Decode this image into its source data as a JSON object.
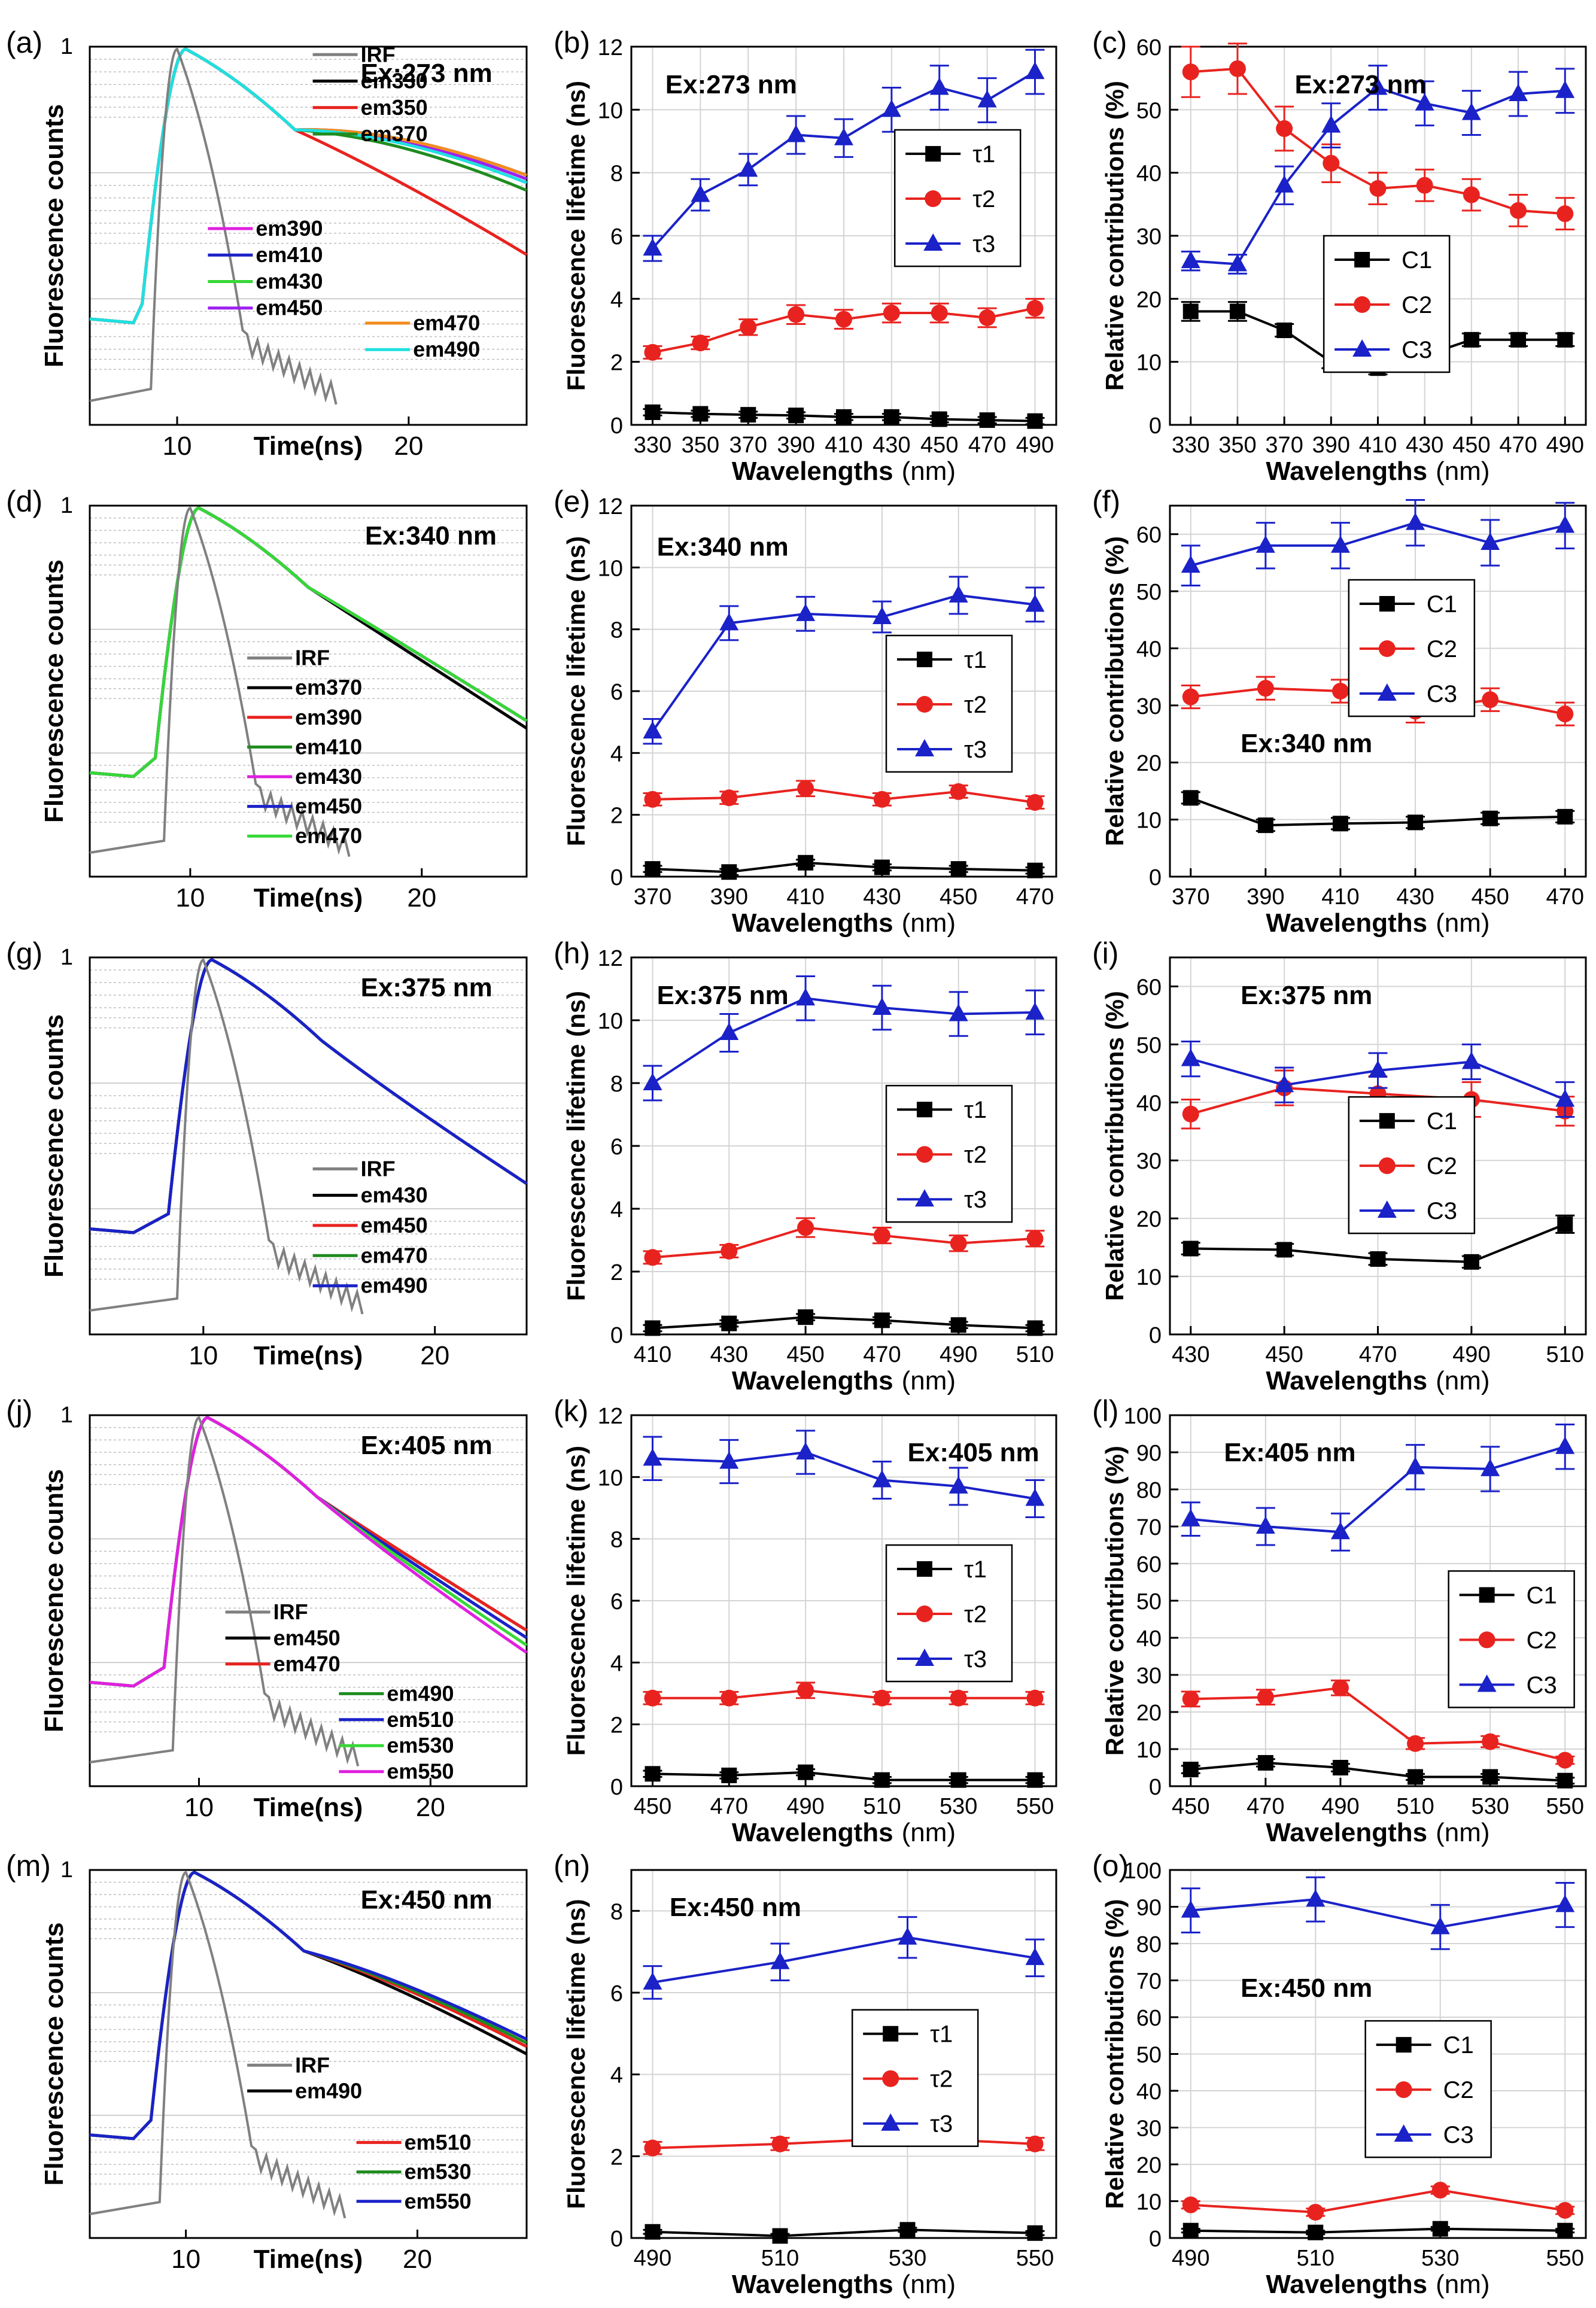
{
  "figure": {
    "colors": {
      "tau1": "#000000",
      "tau2": "#e8231f",
      "tau3": "#1a22c8",
      "irf": "#808080"
    },
    "icons": [
      "square-marker-icon",
      "circle-marker-icon",
      "triangle-marker-icon"
    ]
  },
  "chart_data": [
    {
      "id": "a",
      "type": "line",
      "panel_label": "(a)",
      "title": "Ex:273 nm",
      "ylabel": "Fluorescence counts",
      "xlabel": "Time(ns)",
      "log_y": true,
      "xticks": [
        "10",
        "20"
      ],
      "yticks": [
        "1"
      ],
      "legend": [
        "IRF",
        "em330",
        "em350",
        "em370",
        "em390",
        "em410",
        "em430",
        "em450",
        "em470",
        "em490"
      ],
      "legend_colors": [
        "#808080",
        "#000000",
        "#e8231f",
        "#1f8c1f",
        "#e020e0",
        "#1a22c8",
        "#36d836",
        "#a020f0",
        "#f28c1f",
        "#1fe0e0"
      ]
    },
    {
      "id": "b",
      "type": "line",
      "panel_label": "(b)",
      "title": "Ex:273 nm",
      "ylabel": "Fluorescence lifetime (ns)",
      "xlabel": "Wavelengths",
      "xlabel_unit": "(nm)",
      "categories": [
        "330",
        "350",
        "370",
        "390",
        "410",
        "430",
        "450",
        "470",
        "490"
      ],
      "ylim": [
        0,
        12
      ],
      "yticks": [
        "0",
        "2",
        "4",
        "6",
        "8",
        "10",
        "12"
      ],
      "series": [
        {
          "name": "τ1",
          "values": [
            0.4,
            0.35,
            0.32,
            0.3,
            0.25,
            0.25,
            0.18,
            0.15,
            0.12
          ],
          "errors": [
            0.1,
            0.1,
            0.1,
            0.1,
            0.1,
            0.1,
            0.1,
            0.1,
            0.1
          ]
        },
        {
          "name": "τ2",
          "values": [
            2.3,
            2.6,
            3.1,
            3.5,
            3.35,
            3.55,
            3.55,
            3.4,
            3.7
          ],
          "errors": [
            0.2,
            0.2,
            0.25,
            0.3,
            0.3,
            0.3,
            0.3,
            0.3,
            0.3
          ]
        },
        {
          "name": "τ3",
          "values": [
            5.6,
            7.3,
            8.1,
            9.2,
            9.1,
            10.0,
            10.7,
            10.3,
            11.2
          ],
          "errors": [
            0.4,
            0.5,
            0.5,
            0.6,
            0.6,
            0.7,
            0.7,
            0.7,
            0.7
          ]
        }
      ]
    },
    {
      "id": "c",
      "type": "line",
      "panel_label": "(c)",
      "title": "Ex:273 nm",
      "ylabel": "Relative contributions (%)",
      "xlabel": "Wavelengths",
      "xlabel_unit": "(nm)",
      "categories": [
        "330",
        "350",
        "370",
        "390",
        "410",
        "430",
        "450",
        "470",
        "490"
      ],
      "ylim": [
        0,
        60
      ],
      "yticks": [
        "0",
        "10",
        "20",
        "30",
        "40",
        "50",
        "60"
      ],
      "series": [
        {
          "name": "C1",
          "values": [
            18,
            18,
            15,
            10,
            9,
            11,
            13.5,
            13.5,
            13.5
          ],
          "errors": [
            1.5,
            1.5,
            1,
            1,
            1,
            1,
            1,
            1,
            1
          ]
        },
        {
          "name": "C2",
          "values": [
            56,
            56.5,
            47,
            41.5,
            37.5,
            38,
            36.5,
            34,
            33.5
          ],
          "errors": [
            4,
            4,
            3.5,
            3,
            2.5,
            2.5,
            2.5,
            2.5,
            2.5
          ]
        },
        {
          "name": "C3",
          "values": [
            26,
            25.5,
            38,
            47.5,
            53.5,
            51,
            49.5,
            52.5,
            53
          ],
          "errors": [
            1.5,
            1.5,
            3,
            3.5,
            3.5,
            3.5,
            3.5,
            3.5,
            3.5
          ]
        }
      ]
    },
    {
      "id": "d",
      "type": "line",
      "panel_label": "(d)",
      "title": "Ex:340 nm",
      "ylabel": "Fluorescence counts",
      "xlabel": "Time(ns)",
      "log_y": true,
      "xticks": [
        "10",
        "20"
      ],
      "yticks": [
        "1"
      ],
      "legend": [
        "IRF",
        "em370",
        "em390",
        "em410",
        "em430",
        "em450",
        "em470"
      ],
      "legend_colors": [
        "#808080",
        "#000000",
        "#e8231f",
        "#1f8c1f",
        "#e020e0",
        "#1a22c8",
        "#36d836"
      ]
    },
    {
      "id": "e",
      "type": "line",
      "panel_label": "(e)",
      "title": "Ex:340 nm",
      "ylabel": "Fluorescence lifetime (ns)",
      "xlabel": "Wavelengths",
      "xlabel_unit": "(nm)",
      "categories": [
        "370",
        "390",
        "410",
        "430",
        "450",
        "470"
      ],
      "ylim": [
        0,
        12
      ],
      "yticks": [
        "0",
        "2",
        "4",
        "6",
        "8",
        "10",
        "12"
      ],
      "series": [
        {
          "name": "τ1",
          "values": [
            0.25,
            0.15,
            0.45,
            0.3,
            0.25,
            0.2
          ],
          "errors": [
            0.1,
            0.1,
            0.1,
            0.1,
            0.1,
            0.1
          ]
        },
        {
          "name": "τ2",
          "values": [
            2.5,
            2.55,
            2.85,
            2.5,
            2.75,
            2.4
          ],
          "errors": [
            0.2,
            0.2,
            0.25,
            0.2,
            0.2,
            0.2
          ]
        },
        {
          "name": "τ3",
          "values": [
            4.7,
            8.2,
            8.5,
            8.4,
            9.1,
            8.8
          ],
          "errors": [
            0.4,
            0.55,
            0.55,
            0.5,
            0.6,
            0.55
          ]
        }
      ]
    },
    {
      "id": "f",
      "type": "line",
      "panel_label": "(f)",
      "title": "Ex:340 nm",
      "ylabel": "Relative contributions (%)",
      "xlabel": "Wavelengths",
      "xlabel_unit": "(nm)",
      "categories": [
        "370",
        "390",
        "410",
        "430",
        "450",
        "470"
      ],
      "ylim": [
        0,
        65
      ],
      "yticks": [
        "0",
        "10",
        "20",
        "30",
        "40",
        "50",
        "60"
      ],
      "series": [
        {
          "name": "C1",
          "values": [
            13.8,
            9,
            9.3,
            9.5,
            10.2,
            10.5
          ],
          "errors": [
            1,
            1,
            1,
            1,
            1,
            1
          ]
        },
        {
          "name": "C2",
          "values": [
            31.5,
            33,
            32.5,
            29,
            31,
            28.5
          ],
          "errors": [
            2,
            2,
            2,
            2,
            2,
            2
          ]
        },
        {
          "name": "C3",
          "values": [
            54.5,
            58,
            58,
            62,
            58.5,
            61.5
          ],
          "errors": [
            3.5,
            4,
            4,
            4,
            4,
            4
          ]
        }
      ]
    },
    {
      "id": "g",
      "type": "line",
      "panel_label": "(g)",
      "title": "Ex:375 nm",
      "ylabel": "Fluorescence counts",
      "xlabel": "Time(ns)",
      "log_y": true,
      "xticks": [
        "10",
        "20"
      ],
      "yticks": [
        "1"
      ],
      "legend": [
        "IRF",
        "em430",
        "em450",
        "em470",
        "em490"
      ],
      "legend_colors": [
        "#808080",
        "#000000",
        "#e8231f",
        "#1f8c1f",
        "#1a22c8"
      ]
    },
    {
      "id": "h",
      "type": "line",
      "panel_label": "(h)",
      "title": "Ex:375 nm",
      "ylabel": "Fluorescence lifetime (ns)",
      "xlabel": "Wavelengths",
      "xlabel_unit": "(nm)",
      "categories": [
        "410",
        "430",
        "450",
        "470",
        "490",
        "510"
      ],
      "ylim": [
        0,
        12
      ],
      "yticks": [
        "0",
        "2",
        "4",
        "6",
        "8",
        "10",
        "12"
      ],
      "series": [
        {
          "name": "τ1",
          "values": [
            0.2,
            0.35,
            0.55,
            0.45,
            0.3,
            0.2
          ],
          "errors": [
            0.1,
            0.1,
            0.1,
            0.1,
            0.1,
            0.1
          ]
        },
        {
          "name": "τ2",
          "values": [
            2.45,
            2.65,
            3.4,
            3.15,
            2.9,
            3.05
          ],
          "errors": [
            0.2,
            0.2,
            0.3,
            0.25,
            0.25,
            0.25
          ]
        },
        {
          "name": "τ3",
          "values": [
            8.0,
            9.6,
            10.7,
            10.4,
            10.2,
            10.25
          ],
          "errors": [
            0.55,
            0.6,
            0.7,
            0.7,
            0.7,
            0.7
          ]
        }
      ]
    },
    {
      "id": "i",
      "type": "line",
      "panel_label": "(i)",
      "title": "Ex:375 nm",
      "ylabel": "Relative contributions (%)",
      "xlabel": "Wavelengths",
      "xlabel_unit": "(nm)",
      "categories": [
        "430",
        "450",
        "470",
        "490",
        "510"
      ],
      "ylim": [
        0,
        65
      ],
      "yticks": [
        "0",
        "10",
        "20",
        "30",
        "40",
        "50",
        "60"
      ],
      "series": [
        {
          "name": "C1",
          "values": [
            14.8,
            14.6,
            13,
            12.5,
            19
          ],
          "errors": [
            1,
            1,
            1,
            1,
            1.5
          ]
        },
        {
          "name": "C2",
          "values": [
            38,
            42.5,
            41.5,
            40.5,
            38.5
          ],
          "errors": [
            2.5,
            3,
            3,
            3,
            2.5
          ]
        },
        {
          "name": "C3",
          "values": [
            47.5,
            43,
            45.5,
            47,
            40.5
          ],
          "errors": [
            3,
            3,
            3,
            3,
            3
          ]
        }
      ]
    },
    {
      "id": "j",
      "type": "line",
      "panel_label": "(j)",
      "title": "Ex:405 nm",
      "ylabel": "Fluorescence counts",
      "xlabel": "Time(ns)",
      "log_y": true,
      "xticks": [
        "10",
        "20"
      ],
      "yticks": [
        "1"
      ],
      "legend": [
        "IRF",
        "em450",
        "em470",
        "em490",
        "em510",
        "em530",
        "em550"
      ],
      "legend_colors": [
        "#808080",
        "#000000",
        "#e8231f",
        "#1f8c1f",
        "#1a22c8",
        "#36d836",
        "#e020e0"
      ]
    },
    {
      "id": "k",
      "type": "line",
      "panel_label": "(k)",
      "title": "Ex:405 nm",
      "ylabel": "Fluorescence lifetime (ns)",
      "xlabel": "Wavelengths",
      "xlabel_unit": "(nm)",
      "categories": [
        "450",
        "470",
        "490",
        "510",
        "530",
        "550"
      ],
      "ylim": [
        0,
        12
      ],
      "yticks": [
        "0",
        "2",
        "4",
        "6",
        "8",
        "10",
        "12"
      ],
      "series": [
        {
          "name": "τ1",
          "values": [
            0.4,
            0.35,
            0.45,
            0.2,
            0.2,
            0.2
          ],
          "errors": [
            0.1,
            0.1,
            0.1,
            0.1,
            0.1,
            0.1
          ]
        },
        {
          "name": "τ2",
          "values": [
            2.85,
            2.85,
            3.1,
            2.85,
            2.85,
            2.85
          ],
          "errors": [
            0.2,
            0.2,
            0.25,
            0.2,
            0.2,
            0.2
          ]
        },
        {
          "name": "τ3",
          "values": [
            10.6,
            10.5,
            10.8,
            9.9,
            9.7,
            9.3
          ],
          "errors": [
            0.7,
            0.7,
            0.7,
            0.6,
            0.6,
            0.6
          ]
        }
      ]
    },
    {
      "id": "l",
      "type": "line",
      "panel_label": "(l)",
      "title": "Ex:405 nm",
      "ylabel": "Relative contributions (%)",
      "xlabel": "Wavelengths",
      "xlabel_unit": "(nm)",
      "categories": [
        "450",
        "470",
        "490",
        "510",
        "530",
        "550"
      ],
      "ylim": [
        0,
        100
      ],
      "yticks": [
        "0",
        "10",
        "20",
        "30",
        "40",
        "50",
        "60",
        "70",
        "80",
        "90",
        "100"
      ],
      "series": [
        {
          "name": "C1",
          "values": [
            4.5,
            6.3,
            5,
            2.5,
            2.5,
            1.5
          ],
          "errors": [
            1,
            1,
            1,
            0.8,
            0.8,
            0.8
          ]
        },
        {
          "name": "C2",
          "values": [
            23.5,
            24,
            26.5,
            11.5,
            12,
            7
          ],
          "errors": [
            2,
            2,
            2,
            1.5,
            1.5,
            1
          ]
        },
        {
          "name": "C3",
          "values": [
            72,
            70,
            68.5,
            86,
            85.5,
            91.5
          ],
          "errors": [
            4.5,
            5,
            5,
            6,
            6,
            6
          ]
        }
      ]
    },
    {
      "id": "m",
      "type": "line",
      "panel_label": "(m)",
      "title": "Ex:450 nm",
      "ylabel": "Fluorescence counts",
      "xlabel": "Time(ns)",
      "log_y": true,
      "xticks": [
        "10",
        "20"
      ],
      "yticks": [
        "1"
      ],
      "legend": [
        "IRF",
        "em490",
        "em510",
        "em530",
        "em550"
      ],
      "legend_colors": [
        "#808080",
        "#000000",
        "#e8231f",
        "#1f8c1f",
        "#1a22c8"
      ]
    },
    {
      "id": "n",
      "type": "line",
      "panel_label": "(n)",
      "title": "Ex:450 nm",
      "ylabel": "Fluorescence lifetime (ns)",
      "xlabel": "Wavelengths",
      "xlabel_unit": "(nm)",
      "categories": [
        "490",
        "510",
        "530",
        "550"
      ],
      "ylim": [
        0,
        9
      ],
      "yticks": [
        "0",
        "2",
        "4",
        "6",
        "8"
      ],
      "series": [
        {
          "name": "τ1",
          "values": [
            0.15,
            0.05,
            0.2,
            0.12
          ],
          "errors": [
            0.05,
            0.05,
            0.05,
            0.05
          ]
        },
        {
          "name": "τ2",
          "values": [
            2.2,
            2.3,
            2.45,
            2.3
          ],
          "errors": [
            0.15,
            0.15,
            0.2,
            0.15
          ]
        },
        {
          "name": "τ3",
          "values": [
            6.25,
            6.75,
            7.35,
            6.85
          ],
          "errors": [
            0.4,
            0.45,
            0.5,
            0.45
          ]
        }
      ]
    },
    {
      "id": "o",
      "type": "line",
      "panel_label": "(o)",
      "title": "Ex:450 nm",
      "ylabel": "Relative contributions (%)",
      "xlabel": "Wavelengths",
      "xlabel_unit": "(nm)",
      "categories": [
        "490",
        "510",
        "530",
        "550"
      ],
      "ylim": [
        0,
        100
      ],
      "yticks": [
        "0",
        "10",
        "20",
        "30",
        "40",
        "50",
        "60",
        "70",
        "80",
        "90",
        "100"
      ],
      "series": [
        {
          "name": "C1",
          "values": [
            2,
            1.5,
            2.5,
            2
          ],
          "errors": [
            0.5,
            0.5,
            0.5,
            0.5
          ]
        },
        {
          "name": "C2",
          "values": [
            9,
            7,
            13,
            7.5
          ],
          "errors": [
            1,
            1,
            1,
            1
          ]
        },
        {
          "name": "C3",
          "values": [
            89,
            92,
            84.5,
            90.5
          ],
          "errors": [
            6,
            6,
            6,
            6
          ]
        }
      ]
    }
  ]
}
